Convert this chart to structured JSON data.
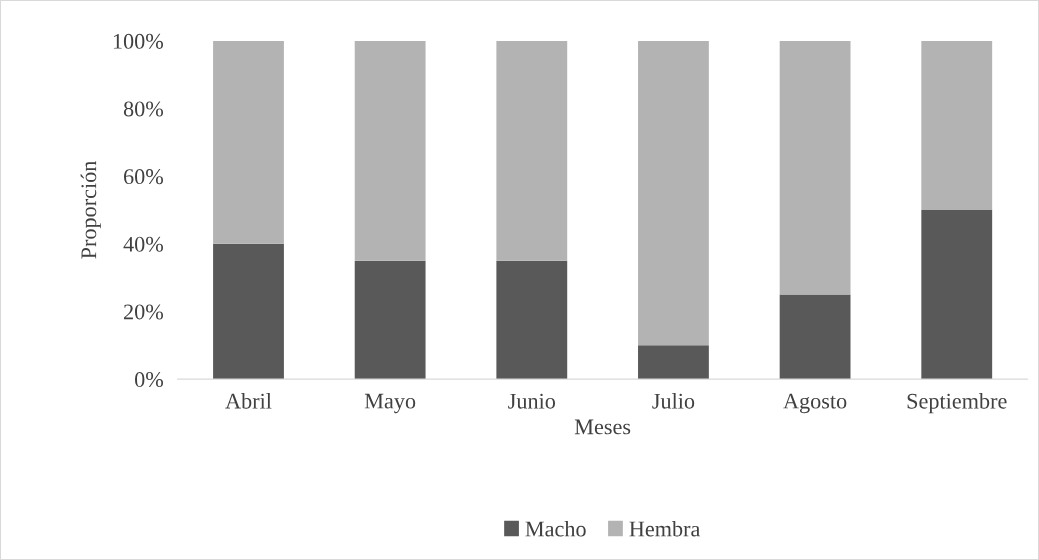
{
  "chart_data": {
    "type": "bar",
    "stacked": true,
    "xlabel": "Meses",
    "ylabel": "Proporción",
    "categories": [
      "Abril",
      "Mayo",
      "Junio",
      "Julio",
      "Agosto",
      "Septiembre"
    ],
    "series": [
      {
        "name": "Macho",
        "color": "#595959",
        "values": [
          40,
          35,
          35,
          10,
          25,
          50
        ]
      },
      {
        "name": "Hembra",
        "color": "#b3b3b3",
        "values": [
          60,
          65,
          65,
          90,
          75,
          50
        ]
      }
    ],
    "ylim": [
      0,
      100
    ],
    "yticks": [
      {
        "value": 0,
        "label": "0%"
      },
      {
        "value": 20,
        "label": "20%"
      },
      {
        "value": 40,
        "label": "40%"
      },
      {
        "value": 60,
        "label": "60%"
      },
      {
        "value": 80,
        "label": "80%"
      },
      {
        "value": 100,
        "label": "100%"
      }
    ],
    "grid": false,
    "legend": "bottom"
  }
}
